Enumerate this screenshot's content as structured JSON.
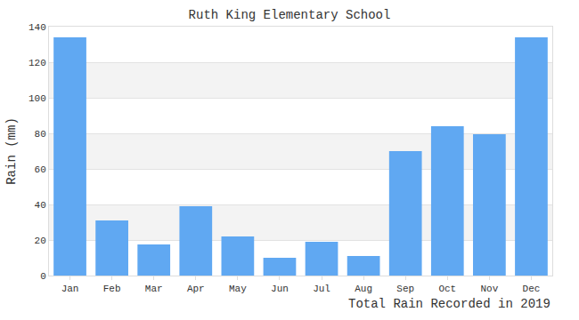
{
  "chart_data": {
    "type": "bar",
    "title": "Ruth King Elementary School",
    "xlabel": "Total Rain Recorded in 2019",
    "ylabel": "Rain (mm)",
    "categories": [
      "Jan",
      "Feb",
      "Mar",
      "Apr",
      "May",
      "Jun",
      "Jul",
      "Aug",
      "Sep",
      "Oct",
      "Nov",
      "Dec"
    ],
    "values": [
      134,
      31,
      17.5,
      39,
      22,
      10,
      19,
      11,
      70,
      84,
      79.5,
      134
    ],
    "color": "#60a8f2",
    "ylim": [
      0,
      140
    ],
    "yticks": [
      0,
      20,
      40,
      60,
      80,
      100,
      120,
      140
    ],
    "grid": true
  }
}
